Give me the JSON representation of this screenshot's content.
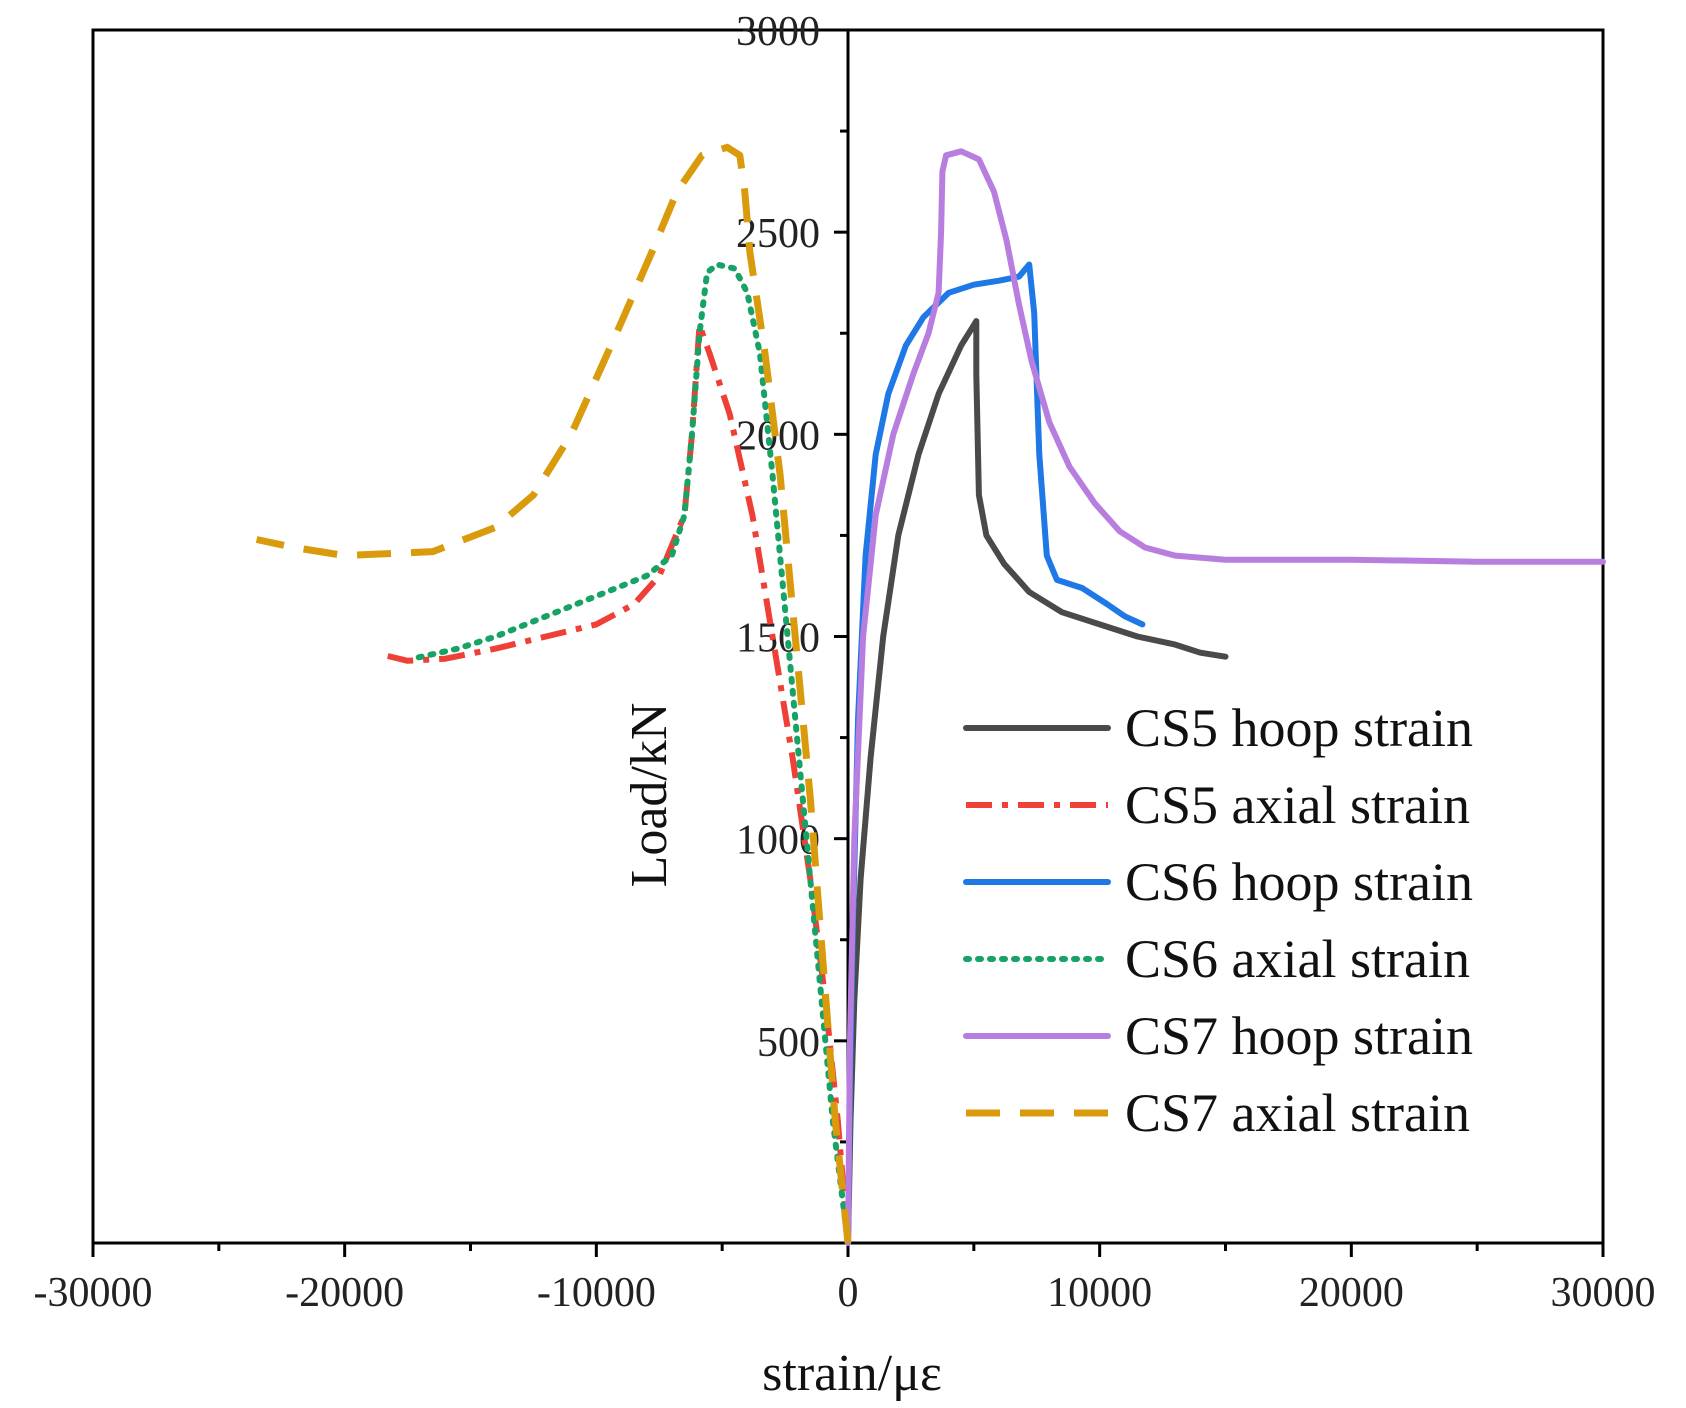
{
  "chart_data": {
    "type": "line",
    "title": "",
    "xlabel": "strain/με",
    "ylabel": "Load/kN",
    "xlim": [
      -30000,
      30000
    ],
    "ylim": [
      0,
      3000
    ],
    "x_ticks": [
      -30000,
      -20000,
      -10000,
      0,
      10000,
      20000,
      30000
    ],
    "x_tick_labels": [
      "-30000",
      "-20000",
      "-10000",
      "0",
      "10000",
      "20000",
      "30000"
    ],
    "y_ticks": [
      500,
      1000,
      1500,
      2000,
      2500,
      3000
    ],
    "y_tick_labels": [
      "500",
      "1000",
      "1500",
      "2000",
      "2500",
      "3000"
    ],
    "grid": false,
    "legend_position": "bottom-right",
    "series": [
      {
        "name": "CS5 hoop strain",
        "color": "#4a4a4a",
        "style": "solid",
        "points": [
          [
            0,
            0
          ],
          [
            100,
            300
          ],
          [
            250,
            600
          ],
          [
            500,
            900
          ],
          [
            900,
            1200
          ],
          [
            1400,
            1500
          ],
          [
            2000,
            1750
          ],
          [
            2800,
            1950
          ],
          [
            3600,
            2100
          ],
          [
            4500,
            2220
          ],
          [
            5000,
            2270
          ],
          [
            5100,
            2280
          ],
          [
            5100,
            2150
          ],
          [
            5200,
            1850
          ],
          [
            5500,
            1750
          ],
          [
            6200,
            1680
          ],
          [
            7200,
            1610
          ],
          [
            8500,
            1560
          ],
          [
            10000,
            1530
          ],
          [
            11500,
            1500
          ],
          [
            13000,
            1480
          ],
          [
            14000,
            1460
          ],
          [
            15000,
            1450
          ]
        ]
      },
      {
        "name": "CS5 axial strain",
        "color": "#ef4038",
        "style": "dashdot",
        "points": [
          [
            0,
            0
          ],
          [
            -400,
            300
          ],
          [
            -900,
            600
          ],
          [
            -1500,
            900
          ],
          [
            -2200,
            1200
          ],
          [
            -3000,
            1500
          ],
          [
            -3800,
            1800
          ],
          [
            -4700,
            2050
          ],
          [
            -5500,
            2200
          ],
          [
            -5900,
            2270
          ],
          [
            -6200,
            2000
          ],
          [
            -6500,
            1800
          ],
          [
            -7500,
            1650
          ],
          [
            -8500,
            1580
          ],
          [
            -10000,
            1530
          ],
          [
            -12000,
            1500
          ],
          [
            -14000,
            1470
          ],
          [
            -16000,
            1445
          ],
          [
            -17500,
            1440
          ],
          [
            -18500,
            1455
          ]
        ]
      },
      {
        "name": "CS6 hoop strain",
        "color": "#1e78e6",
        "style": "solid",
        "points": [
          [
            0,
            0
          ],
          [
            80,
            400
          ],
          [
            200,
            800
          ],
          [
            400,
            1300
          ],
          [
            700,
            1700
          ],
          [
            1100,
            1950
          ],
          [
            1600,
            2100
          ],
          [
            2300,
            2220
          ],
          [
            3000,
            2290
          ],
          [
            4000,
            2350
          ],
          [
            5000,
            2370
          ],
          [
            6000,
            2380
          ],
          [
            6800,
            2390
          ],
          [
            7200,
            2420
          ],
          [
            7400,
            2300
          ],
          [
            7600,
            1950
          ],
          [
            7900,
            1700
          ],
          [
            8300,
            1640
          ],
          [
            9300,
            1620
          ],
          [
            10300,
            1580
          ],
          [
            11000,
            1550
          ],
          [
            11700,
            1530
          ]
        ]
      },
      {
        "name": "CS6 axial strain",
        "color": "#18a366",
        "style": "dotted",
        "points": [
          [
            0,
            0
          ],
          [
            -600,
            300
          ],
          [
            -1200,
            700
          ],
          [
            -1800,
            1100
          ],
          [
            -2400,
            1500
          ],
          [
            -3000,
            1900
          ],
          [
            -3500,
            2200
          ],
          [
            -4000,
            2350
          ],
          [
            -4500,
            2410
          ],
          [
            -5200,
            2420
          ],
          [
            -5600,
            2400
          ],
          [
            -5900,
            2250
          ],
          [
            -6200,
            2000
          ],
          [
            -6500,
            1800
          ],
          [
            -7000,
            1700
          ],
          [
            -8000,
            1650
          ],
          [
            -10000,
            1600
          ],
          [
            -12000,
            1550
          ],
          [
            -14000,
            1500
          ],
          [
            -15500,
            1470
          ],
          [
            -17300,
            1445
          ]
        ]
      },
      {
        "name": "CS7 hoop strain",
        "color": "#b77ee0",
        "style": "solid",
        "points": [
          [
            0,
            0
          ],
          [
            80,
            500
          ],
          [
            250,
            1000
          ],
          [
            600,
            1500
          ],
          [
            1100,
            1800
          ],
          [
            1800,
            2000
          ],
          [
            2600,
            2150
          ],
          [
            3200,
            2250
          ],
          [
            3600,
            2350
          ],
          [
            3700,
            2500
          ],
          [
            3750,
            2650
          ],
          [
            3900,
            2690
          ],
          [
            4500,
            2700
          ],
          [
            5200,
            2680
          ],
          [
            5800,
            2600
          ],
          [
            6300,
            2480
          ],
          [
            6800,
            2320
          ],
          [
            7300,
            2180
          ],
          [
            8000,
            2030
          ],
          [
            8800,
            1920
          ],
          [
            9800,
            1830
          ],
          [
            10800,
            1760
          ],
          [
            11800,
            1720
          ],
          [
            13000,
            1700
          ],
          [
            15000,
            1690
          ],
          [
            20000,
            1690
          ],
          [
            25000,
            1685
          ],
          [
            30000,
            1685
          ]
        ]
      },
      {
        "name": "CS7 axial strain",
        "color": "#d99b0b",
        "style": "dashed",
        "points": [
          [
            0,
            0
          ],
          [
            -500,
            300
          ],
          [
            -1000,
            700
          ],
          [
            -1500,
            1100
          ],
          [
            -2100,
            1500
          ],
          [
            -2700,
            1900
          ],
          [
            -3300,
            2200
          ],
          [
            -3900,
            2450
          ],
          [
            -4100,
            2600
          ],
          [
            -4300,
            2690
          ],
          [
            -4800,
            2710
          ],
          [
            -5800,
            2690
          ],
          [
            -6800,
            2600
          ],
          [
            -7800,
            2450
          ],
          [
            -9200,
            2250
          ],
          [
            -11000,
            2000
          ],
          [
            -12500,
            1850
          ],
          [
            -14000,
            1770
          ],
          [
            -16500,
            1710
          ],
          [
            -20000,
            1700
          ],
          [
            -22000,
            1720
          ],
          [
            -23500,
            1740
          ]
        ]
      }
    ]
  }
}
